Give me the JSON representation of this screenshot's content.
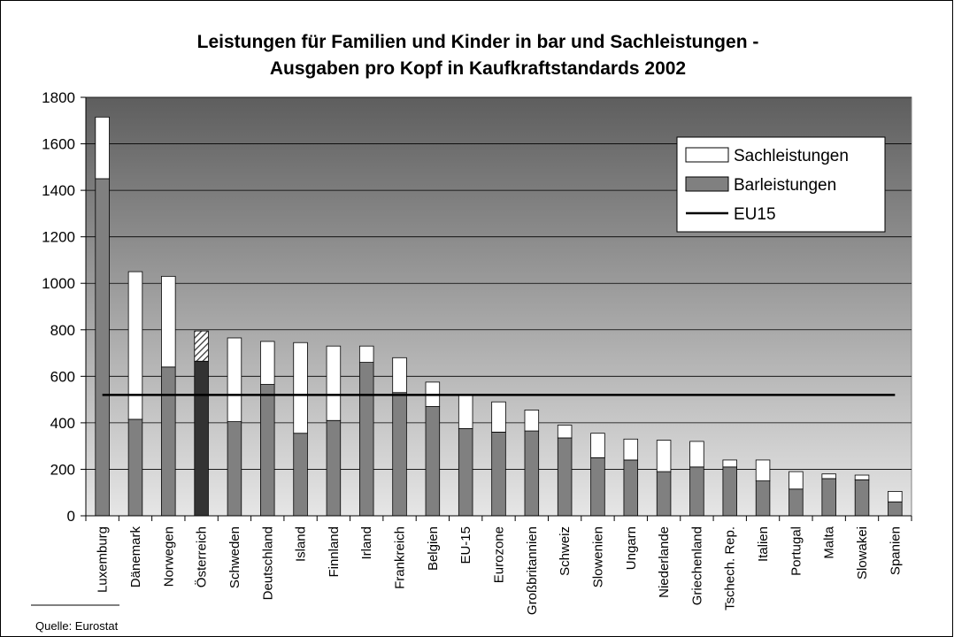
{
  "chart_data": {
    "type": "stacked_bar",
    "title": [
      "Leistungen für Familien und Kinder in bar und Sachleistungen -",
      "Ausgaben pro Kopf in Kaufkraftstandards 2002"
    ],
    "categories": [
      "Luxemburg",
      "Dänemark",
      "Norwegen",
      "Österreich",
      "Schweden",
      "Deutschland",
      "Island",
      "Finnland",
      "Irland",
      "Frankreich",
      "Belgien",
      "EU-15",
      "Eurozone",
      "Großbritannien",
      "Schweiz",
      "Slowenien",
      "Ungarn",
      "Niederlande",
      "Griechenland",
      "Tschech. Rep.",
      "Italien",
      "Portugal",
      "Malta",
      "Slowakei",
      "Spanien"
    ],
    "series": [
      {
        "name": "Barleistungen",
        "color": "#808080",
        "values": [
          1450,
          415,
          640,
          665,
          405,
          565,
          355,
          410,
          660,
          530,
          470,
          375,
          360,
          365,
          335,
          250,
          240,
          190,
          210,
          210,
          150,
          115,
          160,
          155,
          60
        ]
      },
      {
        "name": "Sachleistungen",
        "color": "#ffffff",
        "values": [
          265,
          635,
          390,
          130,
          360,
          185,
          390,
          320,
          70,
          150,
          105,
          145,
          130,
          90,
          55,
          105,
          90,
          135,
          110,
          30,
          90,
          75,
          20,
          20,
          45
        ]
      },
      {
        "name": "EU15",
        "type": "line",
        "color": "#000000",
        "values": [
          520,
          520,
          520,
          520,
          520,
          520,
          520,
          520,
          520,
          520,
          520,
          520,
          520,
          520,
          520,
          520,
          520,
          520,
          520,
          520,
          520,
          520,
          520,
          520,
          520
        ]
      }
    ],
    "highlight": {
      "index": 3,
      "color": "#333333",
      "pattern": "hatch"
    },
    "ylim": [
      0,
      1800
    ],
    "yticks": [
      0,
      200,
      400,
      600,
      800,
      1000,
      1200,
      1400,
      1600,
      1800
    ],
    "grid": true,
    "legend": "top-right",
    "source": "Quelle: Eurostat"
  }
}
